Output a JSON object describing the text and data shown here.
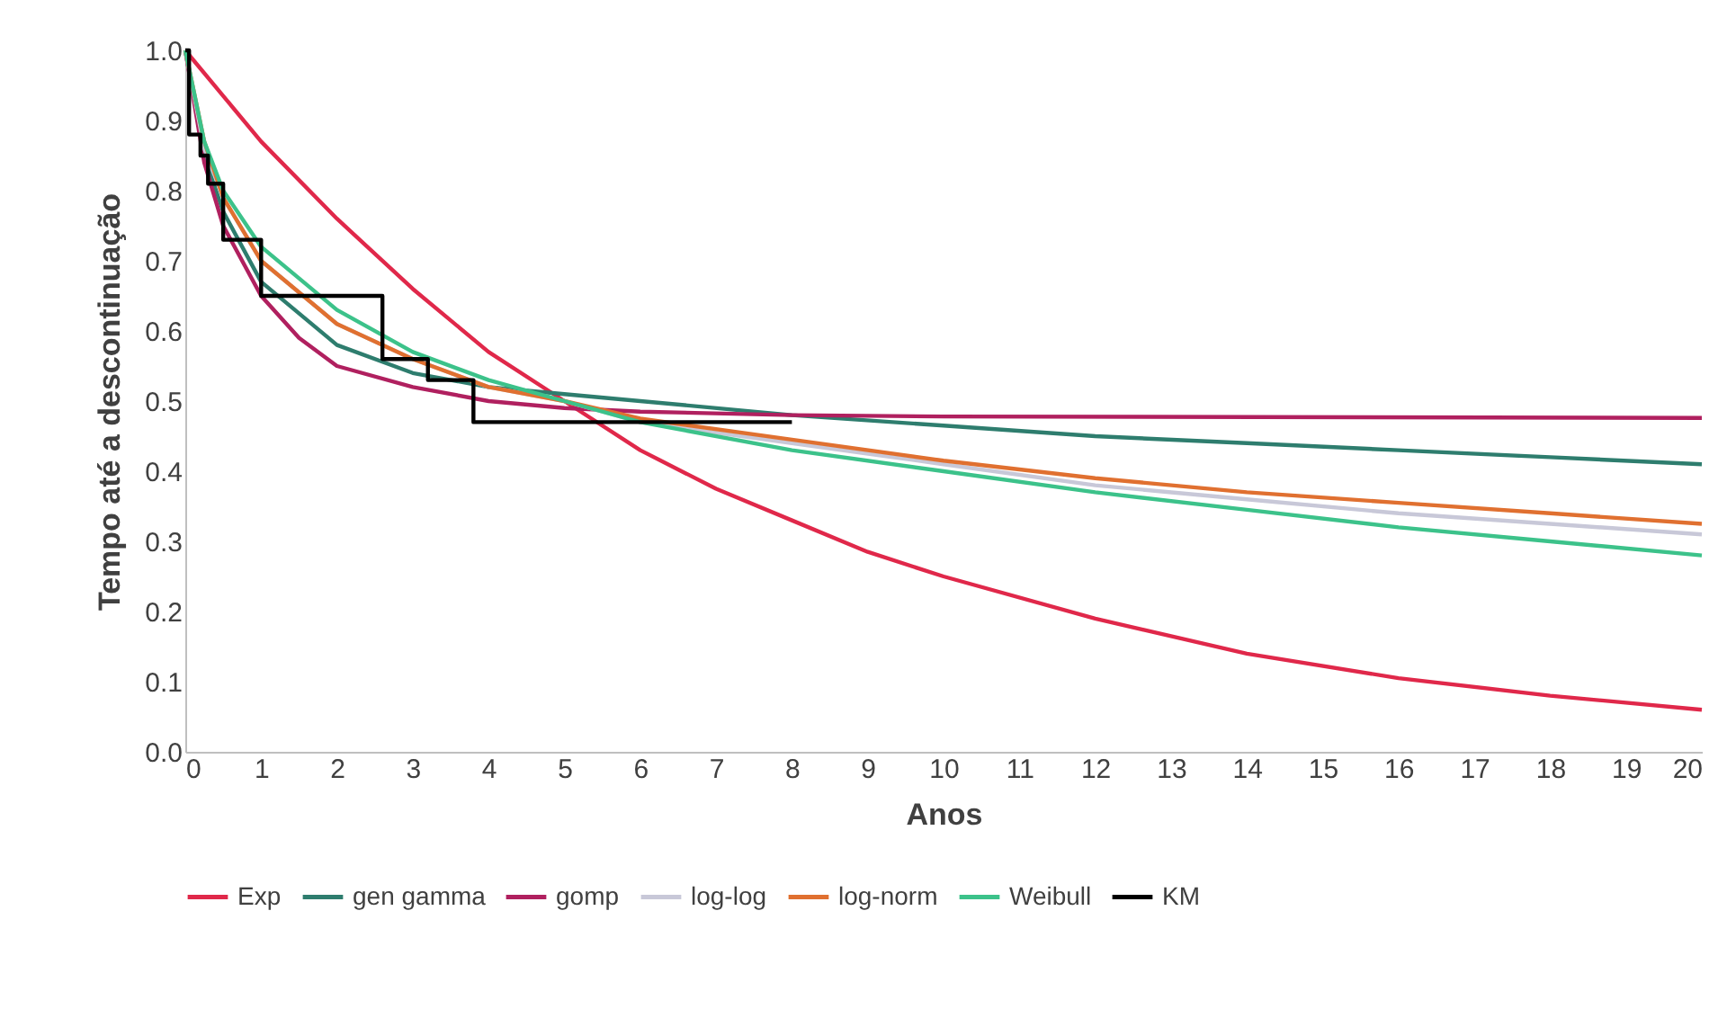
{
  "chart_data": {
    "type": "line",
    "xlabel": "Anos",
    "ylabel": "Tempo até a descontinuação",
    "xlim": [
      0,
      20
    ],
    "xticks": [
      0,
      1,
      2,
      3,
      4,
      5,
      6,
      7,
      8,
      9,
      10,
      11,
      12,
      13,
      14,
      15,
      16,
      17,
      18,
      19,
      20
    ],
    "ylim": [
      0,
      1
    ],
    "yticks": [
      {
        "value": 0,
        "label": "0.0"
      },
      {
        "value": 0.1,
        "label": "0.1"
      },
      {
        "value": 0.2,
        "label": "0.2"
      },
      {
        "value": 0.3,
        "label": "0.3"
      },
      {
        "value": 0.4,
        "label": "0.4"
      },
      {
        "value": 0.5,
        "label": "0.5"
      },
      {
        "value": 0.6,
        "label": "0.6"
      },
      {
        "value": 0.7,
        "label": "0.7"
      },
      {
        "value": 0.8,
        "label": "0.8"
      },
      {
        "value": 0.9,
        "label": "0.9"
      },
      {
        "value": 1,
        "label": "1.0"
      }
    ],
    "grid": false,
    "legend": "bottom",
    "marker": "none",
    "line_style": "solid",
    "series": [
      {
        "name": "Exp",
        "color": "#e0284a",
        "x": [
          0,
          1,
          2,
          3,
          4,
          5,
          6,
          7,
          8,
          9,
          10,
          12,
          14,
          16,
          18,
          20
        ],
        "values": [
          1.0,
          0.87,
          0.76,
          0.66,
          0.57,
          0.5,
          0.43,
          0.375,
          0.33,
          0.285,
          0.25,
          0.19,
          0.14,
          0.105,
          0.08,
          0.06
        ]
      },
      {
        "name": "gen gamma",
        "color": "#2e7d6e",
        "x": [
          0,
          0.25,
          0.5,
          1,
          2,
          3,
          4,
          5,
          6,
          8,
          10,
          12,
          14,
          16,
          18,
          20
        ],
        "values": [
          1.0,
          0.85,
          0.77,
          0.67,
          0.58,
          0.54,
          0.52,
          0.51,
          0.5,
          0.48,
          0.465,
          0.45,
          0.44,
          0.43,
          0.42,
          0.41
        ]
      },
      {
        "name": "gomp",
        "color": "#b0205f",
        "x": [
          0,
          0.25,
          0.5,
          1,
          1.5,
          2,
          3,
          4,
          5,
          6,
          8,
          10,
          20
        ],
        "values": [
          1.0,
          0.84,
          0.75,
          0.65,
          0.59,
          0.55,
          0.52,
          0.5,
          0.49,
          0.485,
          0.48,
          0.478,
          0.476
        ]
      },
      {
        "name": "log-log",
        "color": "#c8c8d8",
        "x": [
          0,
          0.25,
          0.5,
          1,
          2,
          3,
          4,
          5,
          6,
          8,
          10,
          12,
          14,
          16,
          18,
          20
        ],
        "values": [
          1.0,
          0.86,
          0.79,
          0.7,
          0.61,
          0.56,
          0.52,
          0.5,
          0.47,
          0.44,
          0.41,
          0.38,
          0.36,
          0.34,
          0.325,
          0.31
        ]
      },
      {
        "name": "log-norm",
        "color": "#e07030",
        "x": [
          0,
          0.25,
          0.5,
          1,
          2,
          3,
          4,
          5,
          6,
          8,
          10,
          12,
          14,
          16,
          18,
          20
        ],
        "values": [
          1.0,
          0.87,
          0.79,
          0.7,
          0.61,
          0.56,
          0.52,
          0.5,
          0.475,
          0.445,
          0.415,
          0.39,
          0.37,
          0.355,
          0.34,
          0.325
        ]
      },
      {
        "name": "Weibull",
        "color": "#3cc28a",
        "x": [
          0,
          0.25,
          0.5,
          1,
          2,
          3,
          4,
          5,
          6,
          8,
          10,
          12,
          14,
          16,
          18,
          20
        ],
        "values": [
          1.0,
          0.87,
          0.8,
          0.72,
          0.63,
          0.57,
          0.53,
          0.5,
          0.47,
          0.43,
          0.4,
          0.37,
          0.345,
          0.32,
          0.3,
          0.28
        ]
      },
      {
        "name": "KM",
        "type": "step",
        "color": "#000000",
        "x": [
          0,
          0.05,
          0.2,
          0.3,
          0.5,
          1,
          2.6,
          3.2,
          3.8,
          8
        ],
        "values": [
          1.0,
          0.88,
          0.85,
          0.81,
          0.73,
          0.65,
          0.56,
          0.53,
          0.47,
          0.47
        ]
      }
    ]
  }
}
